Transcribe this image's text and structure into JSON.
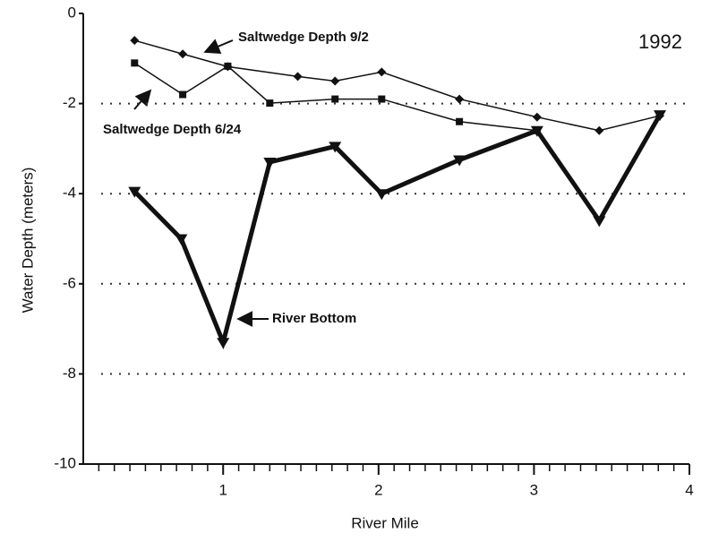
{
  "chart_data": {
    "type": "line",
    "xlabel": "River Mile",
    "ylabel": "Water Depth (meters)",
    "annotations": [
      "Saltwedge Depth 9/2",
      "Saltwedge Depth 6/24",
      "River Bottom",
      "1992"
    ],
    "series": [
      {
        "name": "Saltwedge Depth 9/2",
        "color": "#111111",
        "marker": "diamond",
        "width": 1.5,
        "x": [
          0.43,
          0.74,
          1.03,
          1.48,
          1.72,
          2.02,
          2.52,
          3.02,
          3.42,
          3.81
        ],
        "values": [
          -0.6,
          -0.9,
          -1.18,
          -1.4,
          -1.5,
          -1.3,
          -1.9,
          -2.3,
          -2.6,
          -2.27
        ]
      },
      {
        "name": "Saltwedge Depth 6/24",
        "color": "#111111",
        "marker": "square",
        "width": 1.5,
        "x": [
          0.43,
          0.74,
          1.03,
          1.3,
          1.72,
          2.02,
          2.52,
          3.02
        ],
        "values": [
          -1.1,
          -1.8,
          -1.17,
          -1.99,
          -1.9,
          -1.9,
          -2.4,
          -2.6
        ]
      },
      {
        "name": "River Bottom",
        "color": "#111111",
        "marker": "triangle-down",
        "width": 5,
        "x": [
          0.43,
          0.73,
          1.0,
          1.3,
          1.72,
          2.02,
          2.52,
          3.02,
          3.42,
          3.81
        ],
        "values": [
          -3.95,
          -5,
          -7.3,
          -3.3,
          -2.95,
          -4,
          -3.25,
          -2.6,
          -4.6,
          -2.25
        ]
      }
    ],
    "xlim": [
      0.1,
      4
    ],
    "xticks": [
      1,
      2,
      3,
      4
    ],
    "xminorticks": [
      0.2,
      0.3,
      0.4,
      0.5,
      0.6,
      0.7,
      0.8,
      0.9,
      1.1,
      1.2,
      1.3,
      1.4,
      1.5,
      1.6,
      1.7,
      1.8,
      1.9,
      2.1,
      2.2,
      2.3,
      2.4,
      2.5,
      2.6,
      2.7,
      2.8,
      2.9,
      3.1,
      3.2,
      3.3,
      3.4,
      3.5,
      3.6,
      3.7,
      3.8,
      3.9
    ],
    "ylim": [
      -10,
      0
    ],
    "yticks": [
      0,
      -2,
      -4,
      -6,
      -8,
      -10
    ],
    "grid_ticks": [
      -2,
      -4,
      -6,
      -8
    ],
    "grid": true
  }
}
